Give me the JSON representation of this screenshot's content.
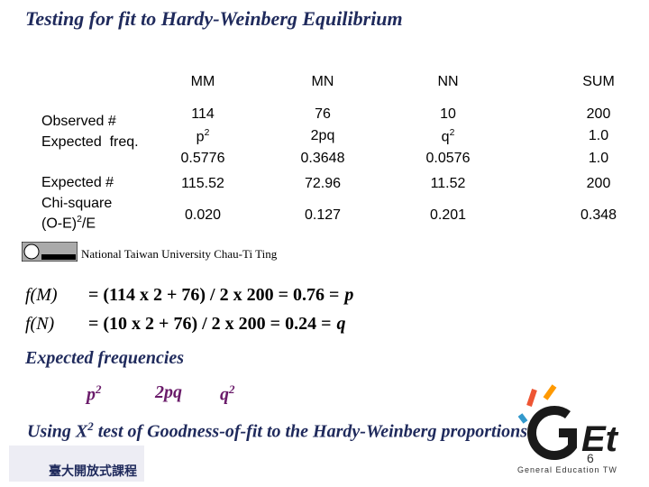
{
  "title": "Testing for fit to Hardy-Weinberg Equilibrium",
  "table": {
    "columns": [
      "MM",
      "MN",
      "NN",
      "SUM"
    ],
    "labels": {
      "observed": "Observed #",
      "expected_freq": "Expected  freq.",
      "expected_count": "Expected #",
      "chi_square": "Chi-square",
      "formula": {
        "text": "(O-E)",
        "sup": "2",
        "tail": "/E"
      }
    },
    "observed": [
      "114",
      "76",
      "10",
      "200"
    ],
    "freq_symbol": [
      {
        "text": "p",
        "sup": "2"
      },
      {
        "text": "2pq"
      },
      {
        "text": "q",
        "sup": "2"
      },
      {
        "text": "1.0"
      }
    ],
    "freq_value": [
      "0.5776",
      "0.3648",
      "0.0576",
      "1.0"
    ],
    "expected": [
      "115.52",
      "72.96",
      "11.52",
      "200"
    ],
    "chi": [
      "0.020",
      "0.127",
      "0.201",
      "0.348"
    ]
  },
  "credit": "National Taiwan University Chau-Ti Ting",
  "equations": [
    {
      "lhs": "f(M)",
      "rhs": "= (114 x 2 + 76) / 2 x 200 = 0.76 =",
      "var": "p"
    },
    {
      "lhs": "f(N)",
      "rhs": "= (10 x 2 + 76) / 2 x 200 = 0.24 =",
      "var": "q"
    }
  ],
  "expected_heading": "Expected frequencies",
  "expected_symbols": [
    {
      "text": "p",
      "sup": "2"
    },
    {
      "text": "2pq"
    },
    {
      "text": "q",
      "sup": "2"
    }
  ],
  "test_text": {
    "before": "Using X",
    "sup": "2",
    "after": "test of Goodness-of-fit to the Hardy-Weinberg proportions"
  },
  "page_number": "6",
  "ntu_logo": "臺大開放式課程",
  "get_logo": "General Education TW"
}
